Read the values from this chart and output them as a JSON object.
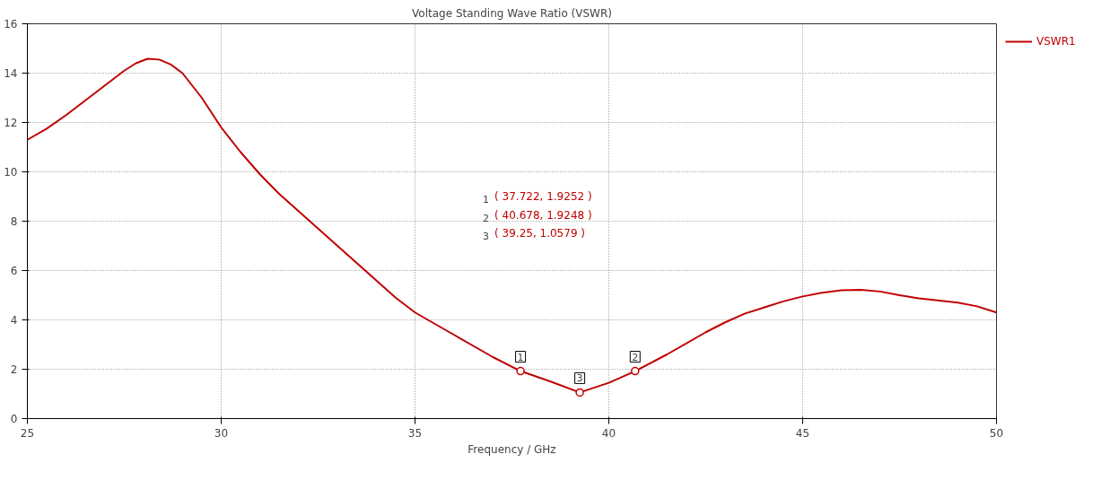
{
  "chart_data": {
    "type": "line",
    "title": "Voltage Standing Wave Ratio (VSWR)",
    "xlabel": "Frequency / GHz",
    "xlim": [
      25,
      50
    ],
    "ylim": [
      0,
      16
    ],
    "xticks": [
      25,
      30,
      35,
      40,
      45,
      50
    ],
    "yticks": [
      0,
      2,
      4,
      6,
      8,
      10,
      12,
      14,
      16
    ],
    "grid": true,
    "legend": "top right",
    "line_style": "solid",
    "series": [
      {
        "name": "VSWR1",
        "color": "#c00000",
        "marker": "none",
        "x": [
          25,
          25.5,
          26,
          26.5,
          27,
          27.5,
          27.8,
          28.1,
          28.4,
          28.7,
          29,
          29.5,
          30,
          30.5,
          31,
          31.5,
          32,
          33,
          34,
          34.5,
          35,
          36,
          37,
          37.722,
          38.5,
          39.25,
          40,
          40.678,
          41.5,
          42.5,
          43,
          43.5,
          44,
          44.5,
          45,
          45.5,
          46,
          46.5,
          47,
          47.5,
          48,
          49,
          49.5,
          50
        ],
        "values": [
          11.3,
          11.75,
          12.3,
          12.9,
          13.5,
          14.1,
          14.4,
          14.58,
          14.55,
          14.35,
          14.0,
          13.0,
          11.8,
          10.8,
          9.9,
          9.1,
          8.4,
          7.0,
          5.6,
          4.9,
          4.3,
          3.4,
          2.5,
          1.9252,
          1.5,
          1.0579,
          1.45,
          1.9248,
          2.6,
          3.5,
          3.9,
          4.25,
          4.5,
          4.75,
          4.95,
          5.1,
          5.2,
          5.22,
          5.15,
          5.0,
          4.87,
          4.7,
          4.55,
          4.3
        ]
      },
      {
        "type": "scatter",
        "color": "#c00000",
        "marker": "circle",
        "x": [
          37.722,
          40.678,
          39.25
        ],
        "values": [
          1.9252,
          1.9248,
          1.0579
        ]
      }
    ],
    "annotations": [
      {
        "text": "1",
        "x": 37.722,
        "y": 1.9252
      },
      {
        "text": "2",
        "x": 40.678,
        "y": 1.9248
      },
      {
        "text": "3",
        "x": 39.25,
        "y": 1.0579
      },
      "( 37.722, 1.9252 )",
      "( 40.678, 1.9248 )",
      "( 39.25, 1.0579 )"
    ]
  }
}
